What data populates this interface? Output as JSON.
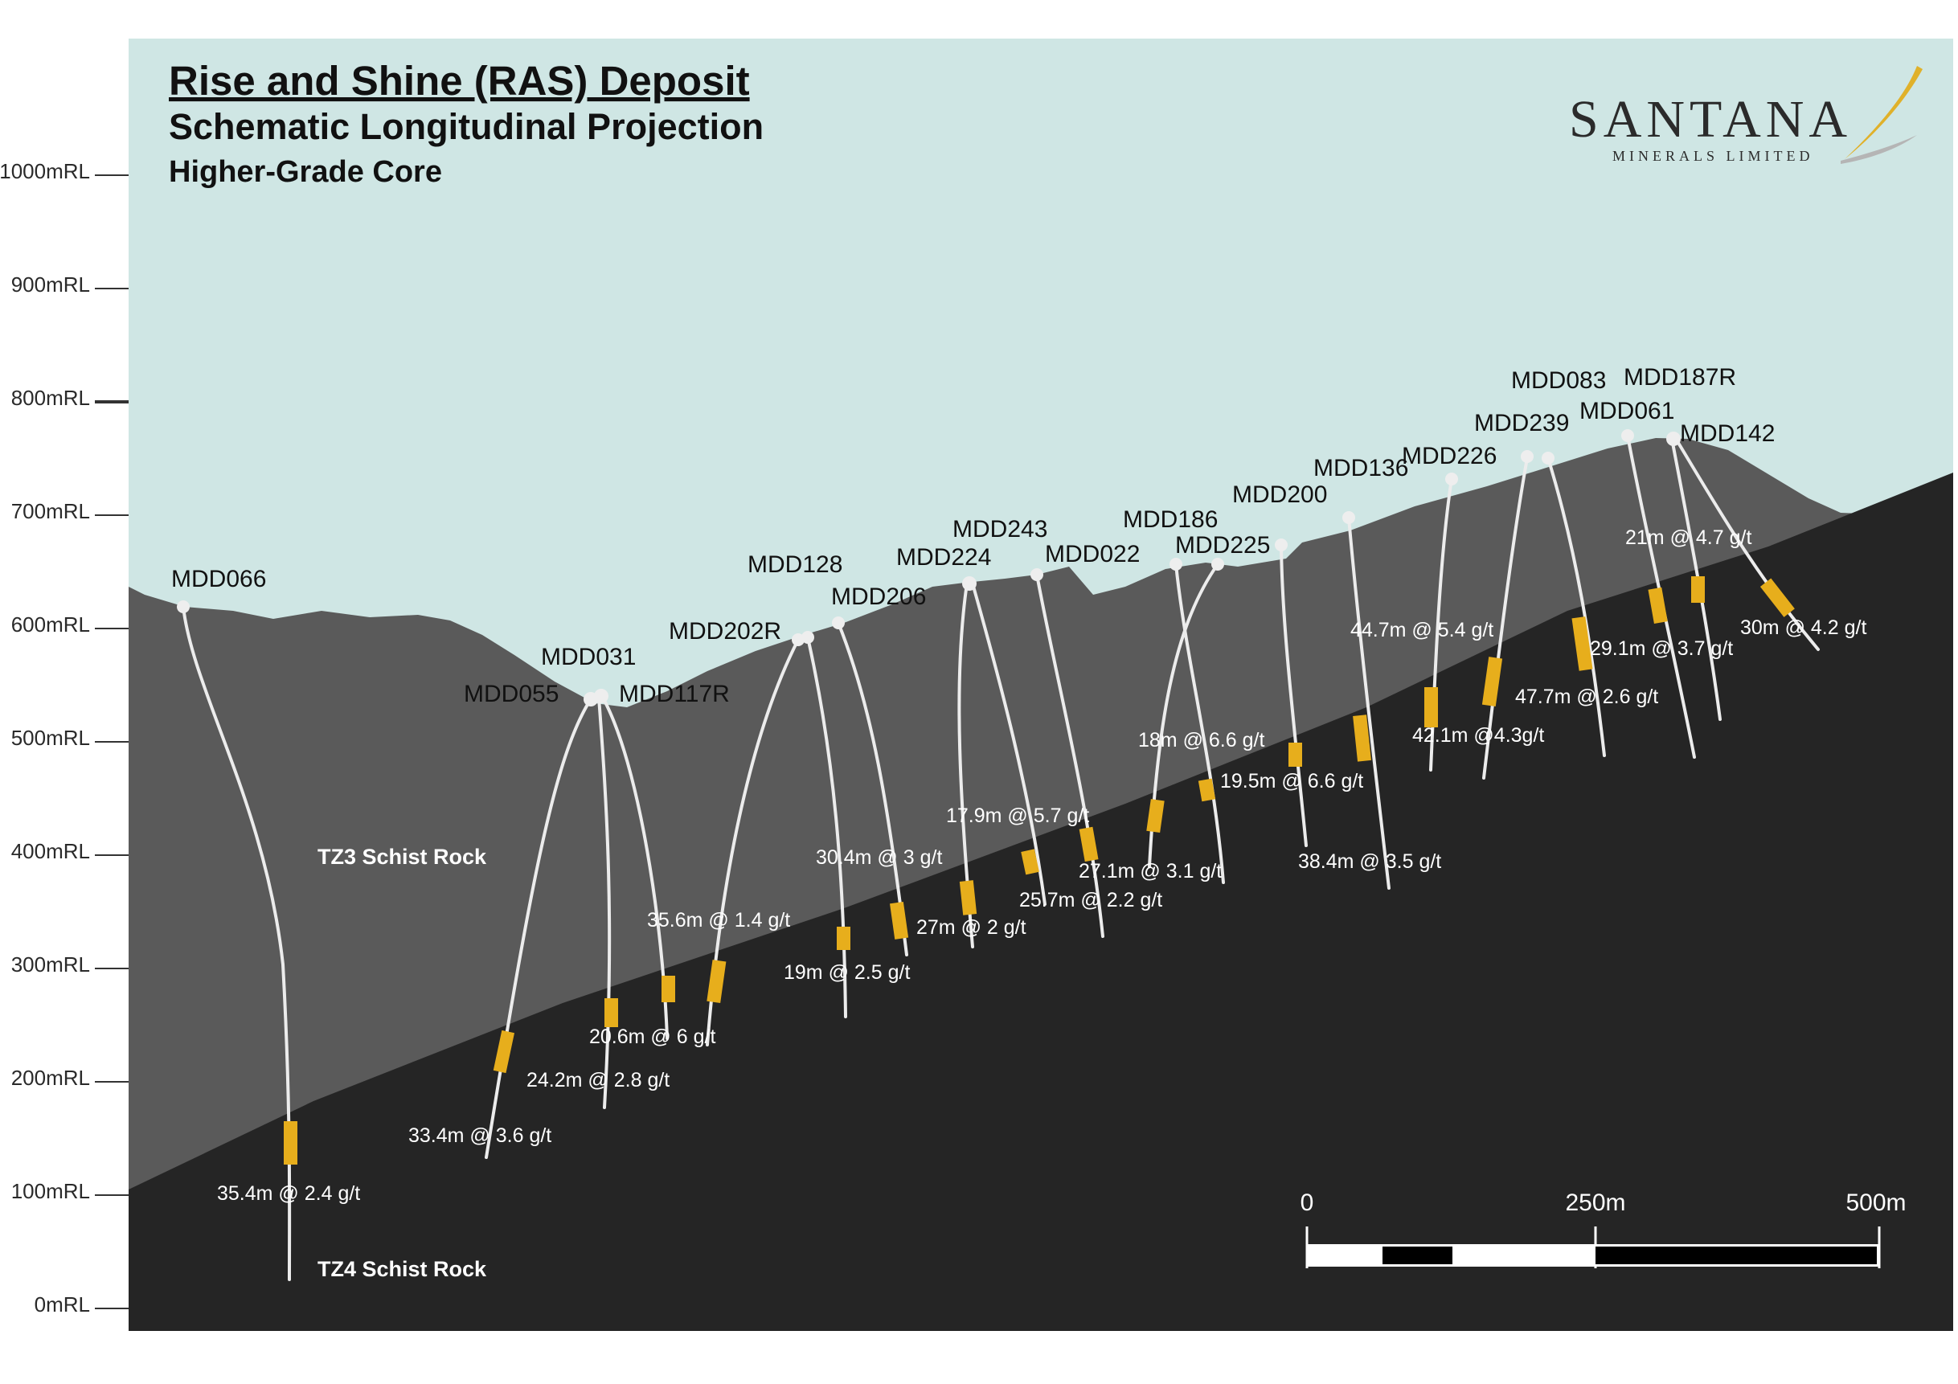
{
  "title": {
    "main": "Rise and Shine (RAS) Deposit",
    "sub": "Schematic Longitudinal Projection",
    "sub2": "Higher-Grade Core"
  },
  "logo": {
    "name": "SANTANA",
    "subtitle": "MINERALS LIMITED",
    "mark": "gold-swoosh-icon",
    "accent_color": "#e0b12a"
  },
  "axis": {
    "labels": [
      "1000mRL",
      "900mRL",
      "800mRL",
      "700mRL",
      "600mRL",
      "500mRL",
      "400mRL",
      "300mRL",
      "200mRL",
      "100mRL",
      "0mRL"
    ]
  },
  "rocks": {
    "tz3": "TZ3 Schist Rock",
    "tz4": "TZ4 Schist Rock"
  },
  "colors": {
    "sky": "#cfe6e4",
    "tz3": "#5a5a5a",
    "tz4": "#252525",
    "intercept": "#e7ae1c",
    "hole": "#ececec"
  },
  "holes": [
    {
      "id": "MDD066"
    },
    {
      "id": "MDD031"
    },
    {
      "id": "MDD055"
    },
    {
      "id": "MDD117R"
    },
    {
      "id": "MDD128"
    },
    {
      "id": "MDD202R"
    },
    {
      "id": "MDD206"
    },
    {
      "id": "MDD243"
    },
    {
      "id": "MDD224"
    },
    {
      "id": "MDD022"
    },
    {
      "id": "MDD186"
    },
    {
      "id": "MDD225"
    },
    {
      "id": "MDD200"
    },
    {
      "id": "MDD136"
    },
    {
      "id": "MDD226"
    },
    {
      "id": "MDD239"
    },
    {
      "id": "MDD083"
    },
    {
      "id": "MDD187R"
    },
    {
      "id": "MDD061"
    },
    {
      "id": "MDD142"
    }
  ],
  "intercepts": [
    "35.4m @ 2.4 g/t",
    "33.4m @ 3.6 g/t",
    "24.2m @ 2.8 g/t",
    "20.6m @ 6 g/t",
    "35.6m @ 1.4 g/t",
    "19m @ 2.5 g/t",
    "30.4m @ 3 g/t",
    "27m @ 2 g/t",
    "17.9m @ 5.7 g/t",
    "25.7m @ 2.2 g/t",
    "27.1m @ 3.1 g/t",
    "18m @ 6.6 g/t",
    "19.5m @ 6.6 g/t",
    "38.4m @ 3.5 g/t",
    "44.7m @ 5.4 g/t",
    "42.1m @4.3g/t",
    "47.7m @ 2.6 g/t",
    "29.1m @ 3.7 g/t",
    "21m @ 4.7 g/t",
    "30m @ 4.2 g/t"
  ],
  "scale": {
    "labels": [
      "0",
      "250m",
      "500m"
    ]
  }
}
